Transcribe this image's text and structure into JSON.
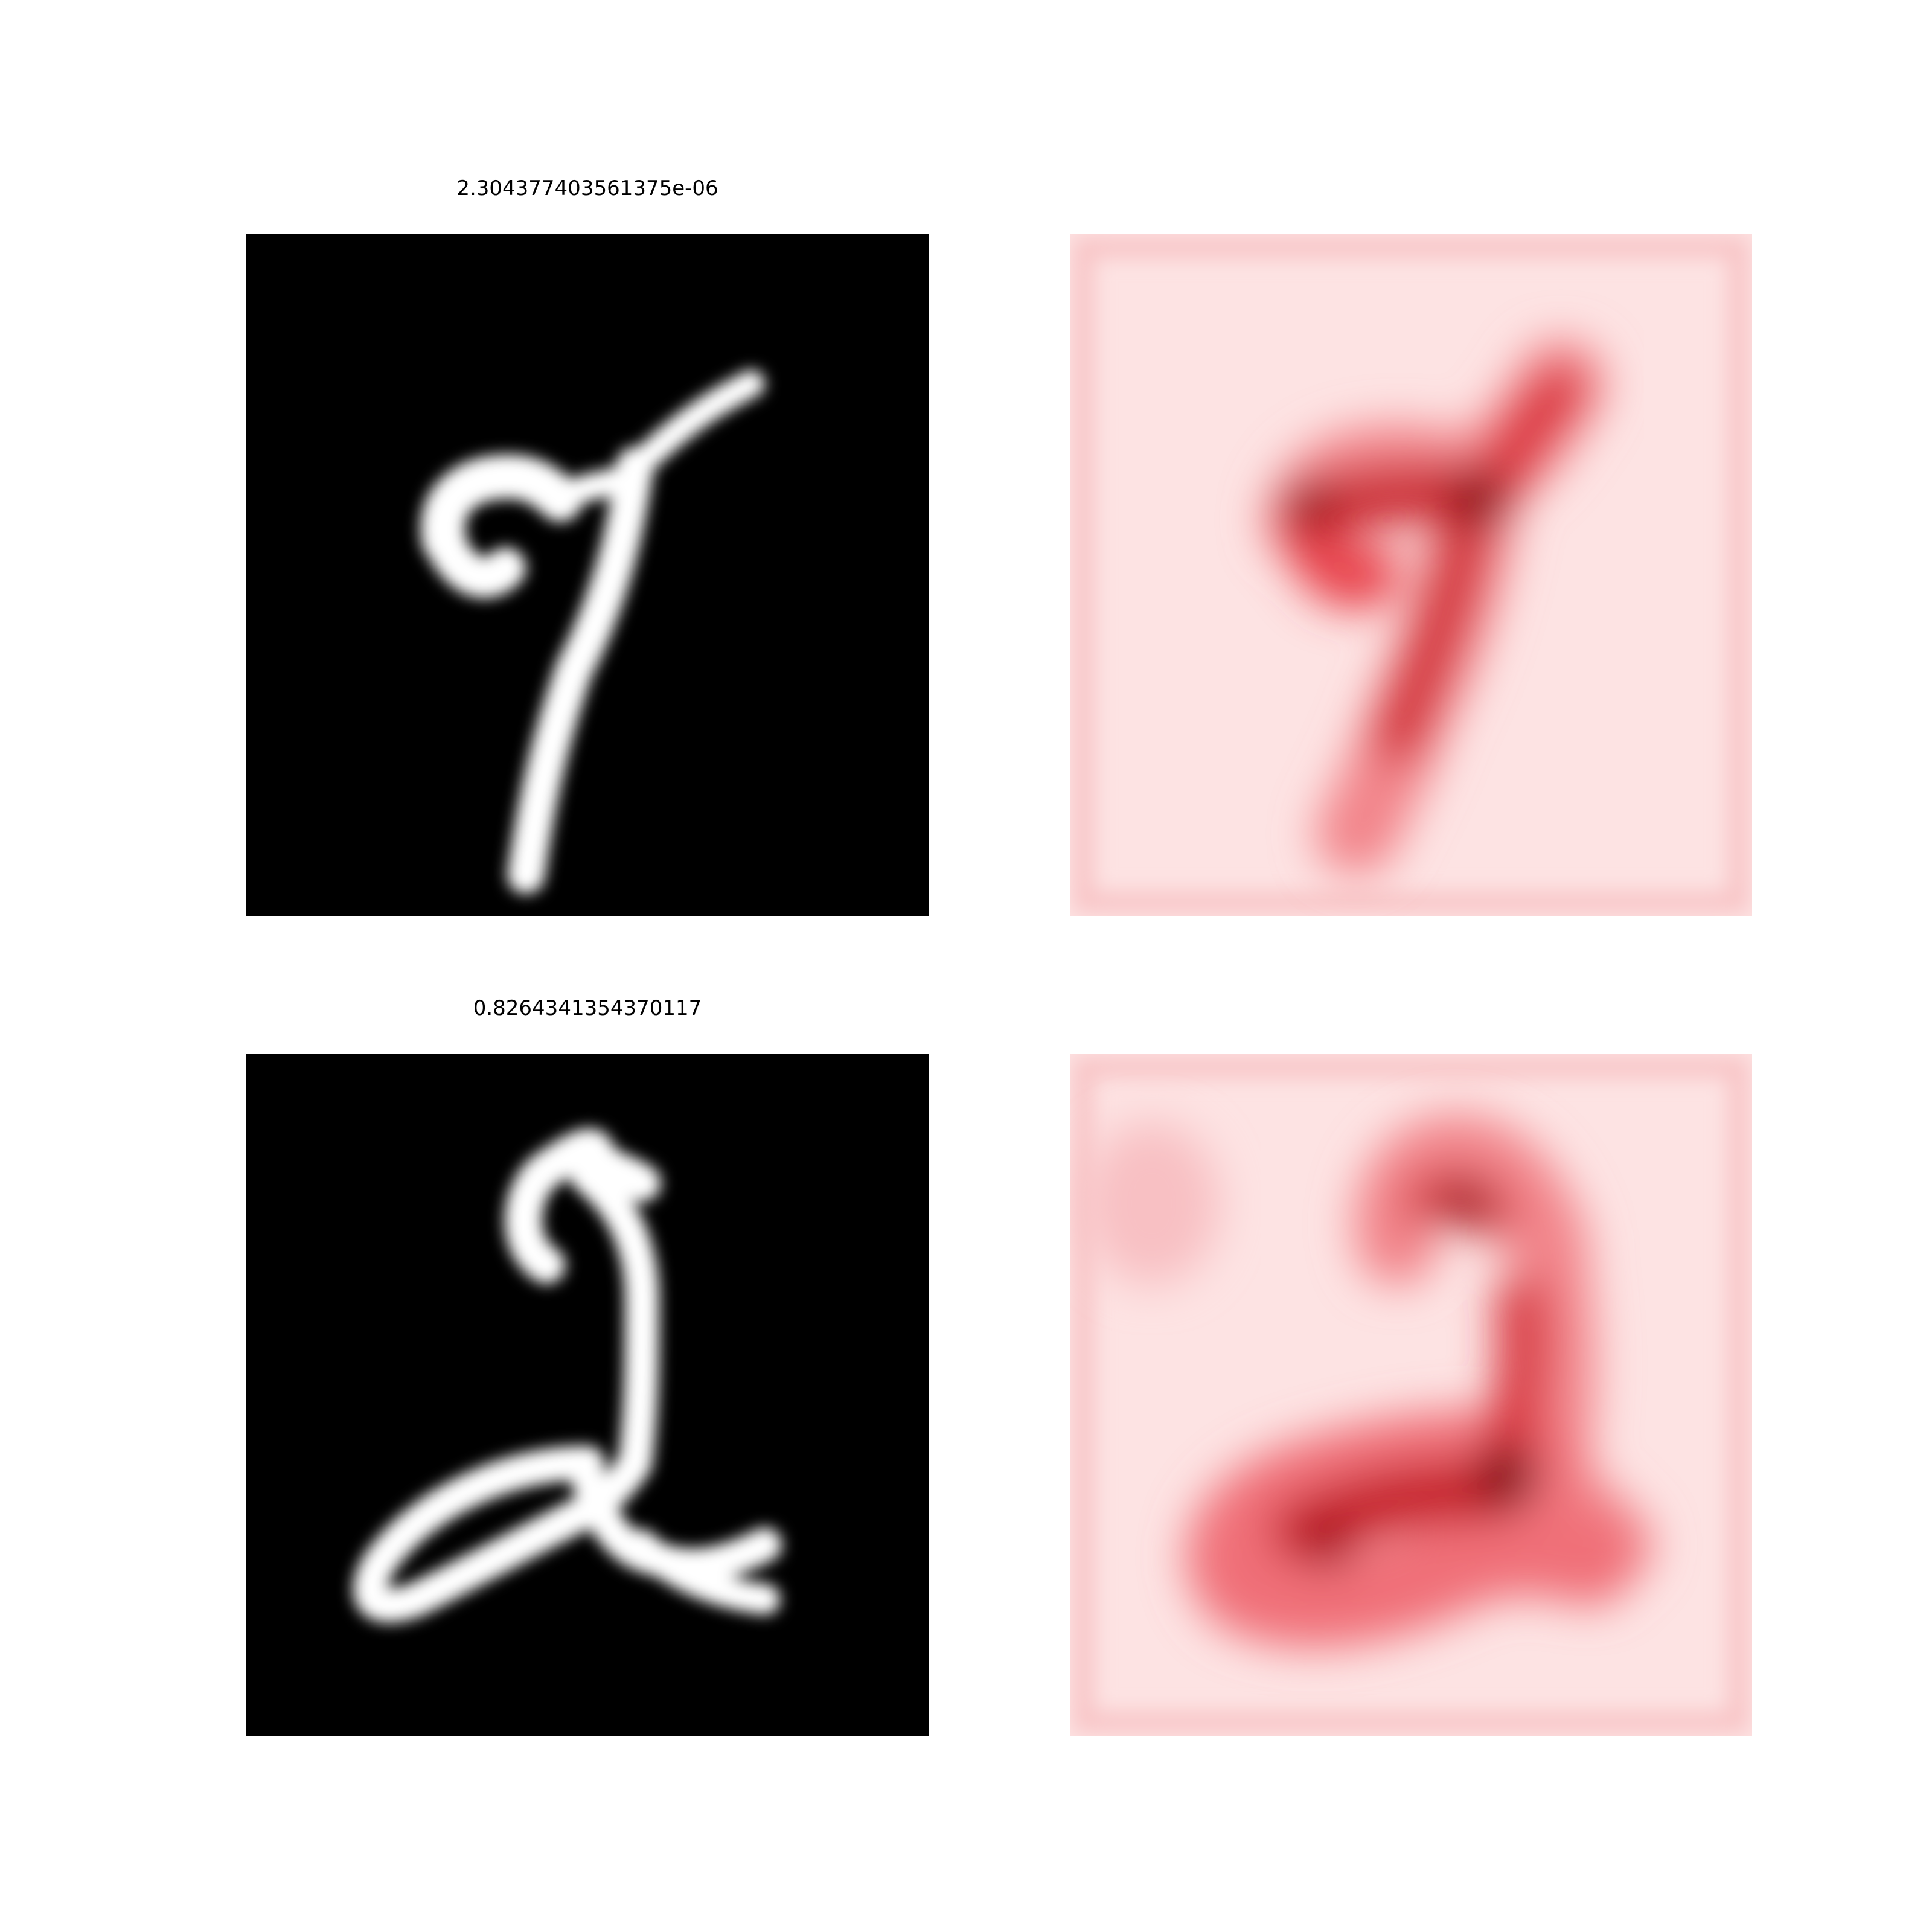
{
  "rows": [
    {
      "title": "2.304377403561375e-06",
      "digit_image": "handwritten-digit-7",
      "heatmap": "attribution-heatmap-7"
    },
    {
      "title": "0.8264341354370117",
      "digit_image": "handwritten-digit-2",
      "heatmap": "attribution-heatmap-2"
    }
  ],
  "colors": {
    "image_background": "#000000",
    "stroke": "#ffffff",
    "heatmap_base": "#fde0e0",
    "heatmap_mid": "#e8404a",
    "heatmap_peak": "#7a0000"
  }
}
